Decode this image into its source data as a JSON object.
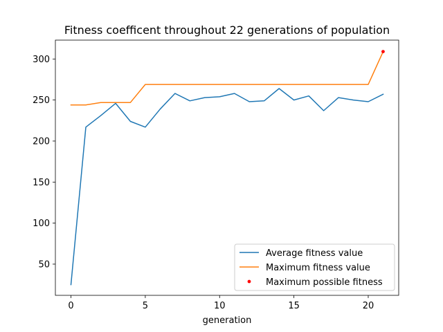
{
  "chart_data": {
    "type": "line",
    "title": "Fitness coefficent throughout 22 generations of population",
    "xlabel": "generation",
    "ylabel": "",
    "xlim": [
      -1.05,
      22.05
    ],
    "ylim": [
      12,
      323
    ],
    "xticks": [
      0,
      5,
      10,
      15,
      20
    ],
    "yticks": [
      50,
      100,
      150,
      200,
      250,
      300
    ],
    "grid": false,
    "legend_position": "lower-right",
    "series": [
      {
        "name": "Average fitness value",
        "kind": "line",
        "color": "#1f77b4",
        "x": [
          0,
          1,
          2,
          3,
          4,
          5,
          6,
          7,
          8,
          9,
          10,
          11,
          12,
          13,
          14,
          15,
          16,
          17,
          18,
          19,
          20,
          21
        ],
        "values": [
          25,
          217,
          231,
          246,
          224,
          217,
          239,
          258,
          249,
          253,
          254,
          258,
          248,
          249,
          264,
          250,
          255,
          237,
          253,
          250,
          248,
          257
        ]
      },
      {
        "name": "Maximum fitness value",
        "kind": "line",
        "color": "#ff7f0e",
        "x": [
          0,
          1,
          2,
          3,
          4,
          5,
          6,
          7,
          8,
          9,
          10,
          11,
          12,
          13,
          14,
          15,
          16,
          17,
          18,
          19,
          20,
          21
        ],
        "values": [
          244,
          244,
          247,
          247,
          247,
          269,
          269,
          269,
          269,
          269,
          269,
          269,
          269,
          269,
          269,
          269,
          269,
          269,
          269,
          269,
          269,
          309
        ]
      },
      {
        "name": "Maximum possible fitness",
        "kind": "point",
        "color": "#ff0000",
        "x": [
          21
        ],
        "values": [
          309
        ]
      }
    ]
  }
}
